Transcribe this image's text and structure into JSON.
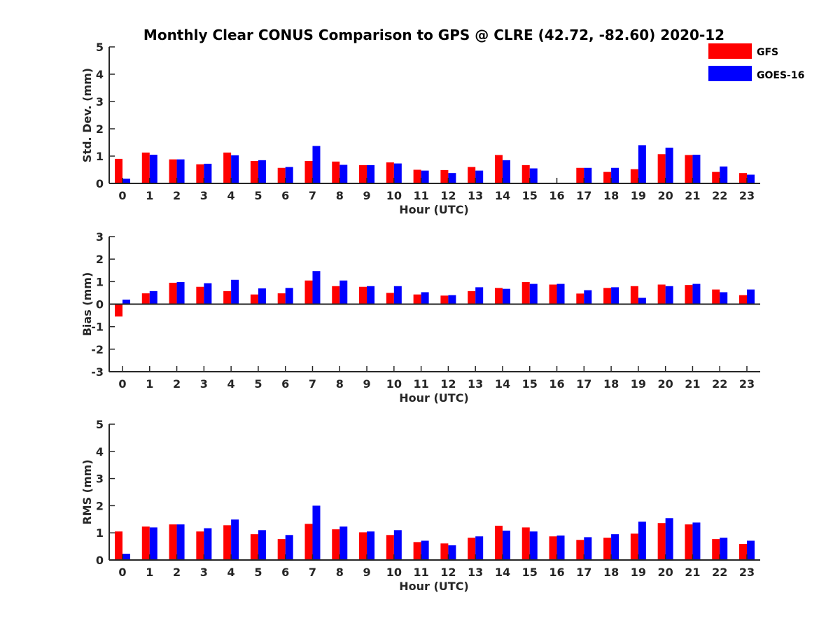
{
  "chart_data": {
    "title": "Monthly Clear CONUS Comparison to GPS @ CLRE (42.72, -82.60) 2020-12",
    "legend": {
      "placement": "top-right",
      "entries": [
        {
          "name": "GFS",
          "color": "#ff0000"
        },
        {
          "name": "GOES-16",
          "color": "#0000ff"
        }
      ]
    },
    "subplots": [
      {
        "type": "bar",
        "ylabel": "Std. Dev. (mm)",
        "xlabel": "Hour (UTC)",
        "ylim": [
          0,
          5
        ],
        "yticks": [
          "0",
          "1",
          "2",
          "3",
          "4",
          "5"
        ],
        "categories": [
          "0",
          "1",
          "2",
          "3",
          "4",
          "5",
          "6",
          "7",
          "8",
          "9",
          "10",
          "11",
          "12",
          "13",
          "14",
          "15",
          "16",
          "17",
          "18",
          "19",
          "20",
          "21",
          "22",
          "23"
        ],
        "series": [
          {
            "name": "GFS",
            "color": "#ff0000",
            "values": [
              0.9,
              1.13,
              0.88,
              0.7,
              1.13,
              0.82,
              0.57,
              0.82,
              0.8,
              0.67,
              0.77,
              0.5,
              0.49,
              0.6,
              1.04,
              0.67,
              null,
              0.57,
              0.42,
              0.52,
              1.07,
              1.04,
              0.42,
              0.38
            ]
          },
          {
            "name": "GOES-16",
            "color": "#0000ff",
            "values": [
              0.17,
              1.05,
              0.88,
              0.72,
              1.03,
              0.85,
              0.6,
              1.37,
              0.68,
              0.67,
              0.73,
              0.47,
              0.38,
              0.47,
              0.85,
              0.55,
              null,
              0.57,
              0.57,
              1.4,
              1.31,
              1.05,
              0.62,
              0.32
            ]
          }
        ]
      },
      {
        "type": "bar",
        "ylabel": "Bias (mm)",
        "xlabel": "Hour (UTC)",
        "ylim": [
          -3,
          3
        ],
        "yticks": [
          "-3",
          "-2",
          "-1",
          "0",
          "1",
          "2",
          "3"
        ],
        "categories": [
          "0",
          "1",
          "2",
          "3",
          "4",
          "5",
          "6",
          "7",
          "8",
          "9",
          "10",
          "11",
          "12",
          "13",
          "14",
          "15",
          "16",
          "17",
          "18",
          "19",
          "20",
          "21",
          "22",
          "23"
        ],
        "series": [
          {
            "name": "GFS",
            "color": "#ff0000",
            "values": [
              -0.55,
              0.48,
              0.95,
              0.77,
              0.58,
              0.43,
              0.48,
              1.05,
              0.8,
              0.77,
              0.5,
              0.43,
              0.38,
              0.58,
              0.72,
              0.98,
              0.87,
              0.47,
              0.72,
              0.8,
              0.87,
              0.85,
              0.65,
              0.4
            ]
          },
          {
            "name": "GOES-16",
            "color": "#0000ff",
            "values": [
              0.2,
              0.58,
              0.98,
              0.93,
              1.08,
              0.7,
              0.72,
              1.47,
              1.05,
              0.8,
              0.8,
              0.53,
              0.4,
              0.75,
              0.68,
              0.9,
              0.9,
              0.62,
              0.75,
              0.28,
              0.8,
              0.9,
              0.53,
              0.65
            ]
          }
        ]
      },
      {
        "type": "bar",
        "ylabel": "RMS (mm)",
        "xlabel": "Hour (UTC)",
        "ylim": [
          0,
          5
        ],
        "yticks": [
          "0",
          "1",
          "2",
          "3",
          "4",
          "5"
        ],
        "categories": [
          "0",
          "1",
          "2",
          "3",
          "4",
          "5",
          "6",
          "7",
          "8",
          "9",
          "10",
          "11",
          "12",
          "13",
          "14",
          "15",
          "16",
          "17",
          "18",
          "19",
          "20",
          "21",
          "22",
          "23"
        ],
        "series": [
          {
            "name": "GFS",
            "color": "#ff0000",
            "values": [
              1.05,
              1.23,
              1.31,
              1.05,
              1.28,
              0.95,
              0.77,
              1.33,
              1.13,
              1.02,
              0.92,
              0.66,
              0.61,
              0.82,
              1.26,
              1.2,
              0.87,
              0.74,
              0.82,
              0.97,
              1.36,
              1.31,
              0.77,
              0.59
            ]
          },
          {
            "name": "GOES-16",
            "color": "#0000ff",
            "values": [
              0.23,
              1.2,
              1.31,
              1.17,
              1.49,
              1.1,
              0.92,
              2.0,
              1.23,
              1.05,
              1.1,
              0.71,
              0.54,
              0.87,
              1.08,
              1.05,
              0.9,
              0.84,
              0.95,
              1.41,
              1.54,
              1.38,
              0.82,
              0.71
            ]
          }
        ]
      }
    ]
  }
}
